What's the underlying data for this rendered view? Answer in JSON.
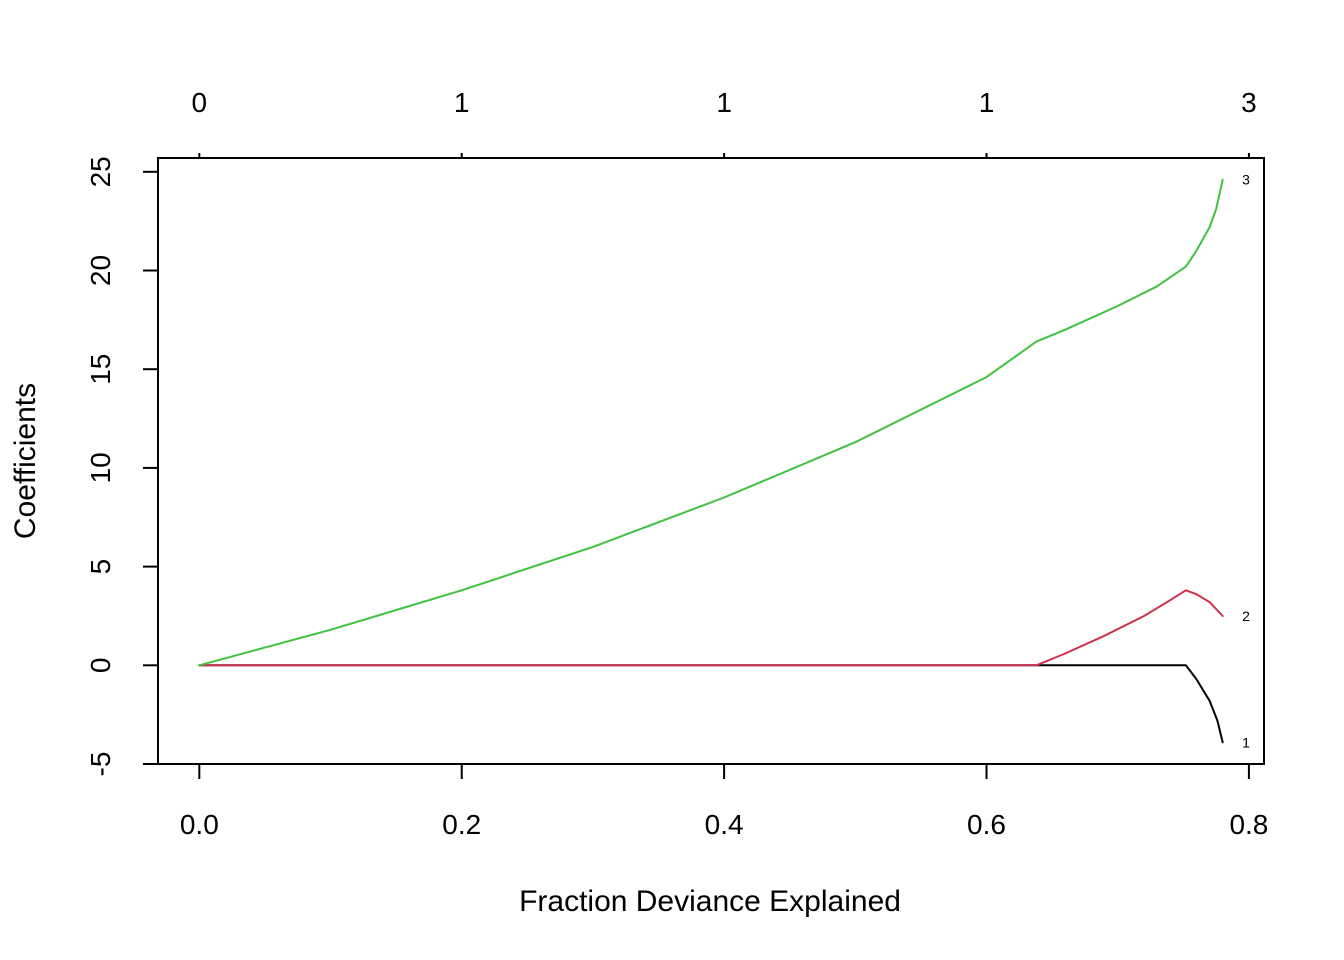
{
  "chart_data": {
    "type": "line",
    "title": "",
    "xlabel": "Fraction Deviance Explained",
    "ylabel": "Coefficients",
    "xlim": [
      -0.0315,
      0.8115
    ],
    "ylim": [
      -5,
      25.7
    ],
    "x_ticks": [
      "0.0",
      "0.2",
      "0.4",
      "0.6",
      "0.8"
    ],
    "x_tick_values": [
      0.0,
      0.2,
      0.4,
      0.6,
      0.8
    ],
    "y_ticks": [
      "-5",
      "0",
      "5",
      "10",
      "15",
      "20",
      "25"
    ],
    "y_tick_values": [
      -5,
      0,
      5,
      10,
      15,
      20,
      25
    ],
    "top_axis_values": [
      0.0,
      0.2,
      0.4,
      0.6,
      0.8
    ],
    "top_axis_labels": [
      "0",
      "1",
      "1",
      "1",
      "3"
    ],
    "grid": false,
    "legend": "none",
    "series": [
      {
        "label": "1",
        "color": "#000000",
        "x": [
          0.0,
          0.2,
          0.4,
          0.6,
          0.64,
          0.7,
          0.752,
          0.76,
          0.77,
          0.776,
          0.78
        ],
        "y": [
          0,
          0,
          0,
          0,
          0,
          0,
          0,
          -0.7,
          -1.8,
          -2.8,
          -3.9
        ]
      },
      {
        "label": "2",
        "color": "#d03050",
        "x": [
          0.0,
          0.2,
          0.4,
          0.6,
          0.638,
          0.66,
          0.69,
          0.72,
          0.74,
          0.752,
          0.76,
          0.77,
          0.78
        ],
        "y": [
          0,
          0,
          0,
          0,
          0,
          0.6,
          1.5,
          2.5,
          3.3,
          3.8,
          3.6,
          3.2,
          2.5
        ]
      },
      {
        "label": "3",
        "color": "#3fc23f",
        "x": [
          0.0,
          0.1,
          0.2,
          0.3,
          0.4,
          0.5,
          0.6,
          0.638,
          0.66,
          0.7,
          0.73,
          0.752,
          0.76,
          0.77,
          0.775,
          0.78
        ],
        "y": [
          0,
          1.8,
          3.8,
          6.0,
          8.5,
          11.3,
          14.6,
          16.4,
          17.0,
          18.2,
          19.2,
          20.2,
          21.0,
          22.2,
          23.1,
          24.6
        ]
      }
    ]
  }
}
